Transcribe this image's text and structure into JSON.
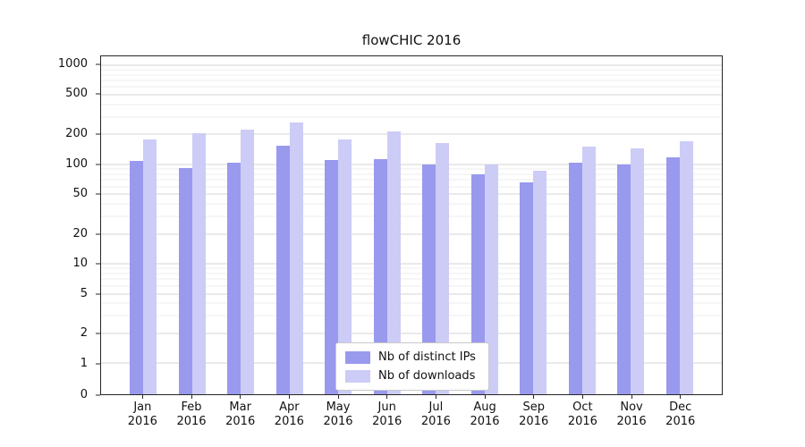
{
  "title": "flowCHIC 2016",
  "chart_data": {
    "type": "bar",
    "title": "flowCHIC 2016",
    "categories": [
      "Jan",
      "Feb",
      "Mar",
      "Apr",
      "May",
      "Jun",
      "Jul",
      "Aug",
      "Sep",
      "Oct",
      "Nov",
      "Dec"
    ],
    "year": "2016",
    "series": [
      {
        "name": "Nb of distinct IPs",
        "color": "#9999ee",
        "values": [
          108,
          92,
          104,
          155,
          110,
          114,
          100,
          80,
          66,
          104,
          100,
          118
        ]
      },
      {
        "name": "Nb of downloads",
        "color": "#ccccf7",
        "values": [
          178,
          208,
          226,
          262,
          180,
          215,
          165,
          100,
          86,
          150,
          144,
          170
        ]
      }
    ],
    "yticks": [
      0,
      1,
      2,
      5,
      10,
      20,
      50,
      100,
      200,
      500,
      1000
    ],
    "yscale": "symlog",
    "ylim": [
      0,
      1224
    ],
    "xlabel": "",
    "ylabel": "",
    "grid": true,
    "legend_position": "lower center"
  }
}
